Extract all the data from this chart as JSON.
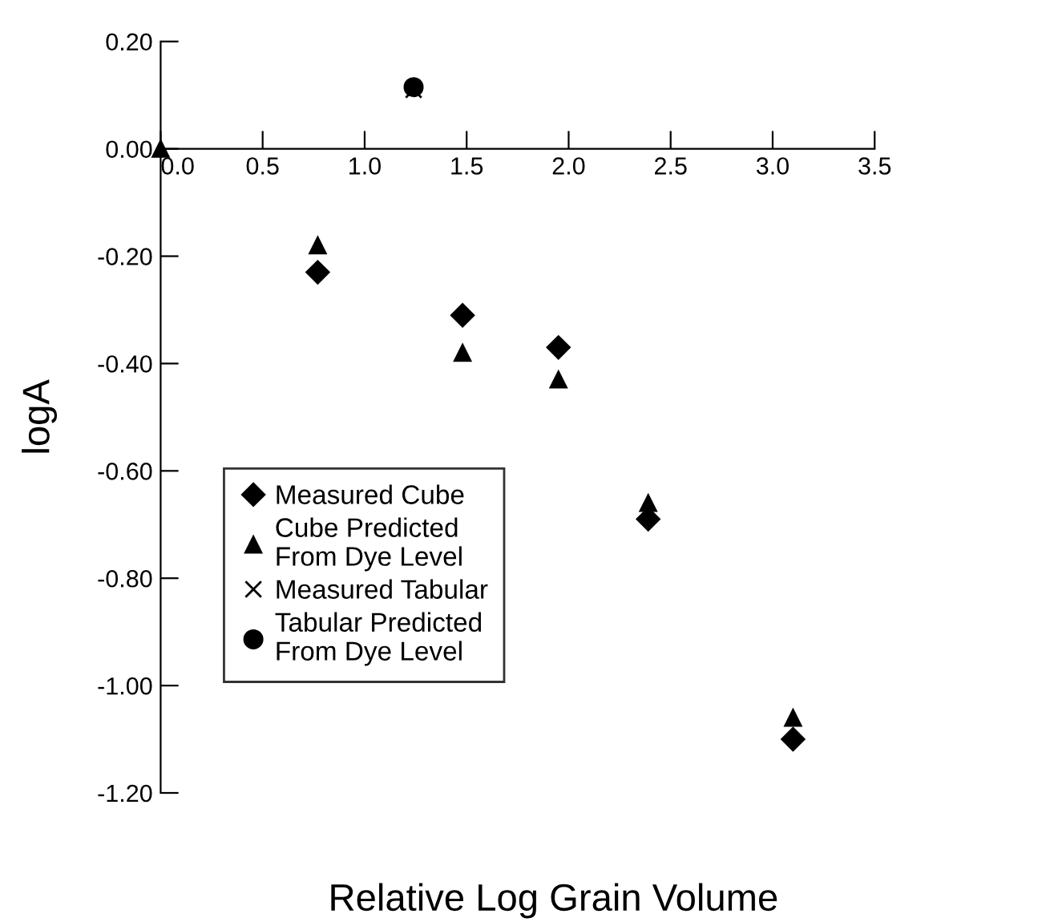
{
  "chart_data": {
    "type": "scatter",
    "xlabel": "Relative Log Grain Volume",
    "ylabel": "logA",
    "xlim": [
      0,
      3.5
    ],
    "ylim": [
      -1.2,
      0.2
    ],
    "xticks": [
      {
        "value": 0,
        "label": "0.0"
      },
      {
        "value": 0.5,
        "label": "0.5"
      },
      {
        "value": 1,
        "label": "1.0"
      },
      {
        "value": 1.5,
        "label": "1.5"
      },
      {
        "value": 2,
        "label": "2.0"
      },
      {
        "value": 2.5,
        "label": "2.5"
      },
      {
        "value": 3,
        "label": "3.0"
      },
      {
        "value": 3.5,
        "label": "3.5"
      }
    ],
    "yticks": [
      {
        "value": 0.2,
        "label": "0.20"
      },
      {
        "value": 0,
        "label": "0.00"
      },
      {
        "value": -0.2,
        "label": "-0.20"
      },
      {
        "value": -0.4,
        "label": "-0.40"
      },
      {
        "value": -0.6,
        "label": "-0.60"
      },
      {
        "value": -0.8,
        "label": "-0.80"
      },
      {
        "value": -1.0,
        "label": "-1.00"
      },
      {
        "value": -1.2,
        "label": "-1.20"
      }
    ],
    "grid": false,
    "legend": "bottom left",
    "series": [
      {
        "name": "Measured Cube",
        "color": "#000000",
        "marker": "diamond",
        "x": [
          0.77,
          1.48,
          1.95,
          2.39,
          3.1
        ],
        "values": [
          -0.23,
          -0.31,
          -0.37,
          -0.69,
          -1.1
        ]
      },
      {
        "name": "Cube Predicted\nFrom Dye Level",
        "color": "#000000",
        "marker": "triangle",
        "x": [
          0,
          0.77,
          1.48,
          1.95,
          2.39,
          3.1
        ],
        "values": [
          0,
          -0.18,
          -0.38,
          -0.43,
          -0.66,
          -1.06
        ]
      },
      {
        "name": "Measured Tabular",
        "color": "#000000",
        "marker": "cross",
        "x": [
          1.24
        ],
        "values": [
          0.11
        ]
      },
      {
        "name": "Tabular Predicted\nFrom Dye Level",
        "color": "#000000",
        "marker": "circle",
        "x": [
          1.24
        ],
        "values": [
          0.115
        ]
      }
    ]
  }
}
